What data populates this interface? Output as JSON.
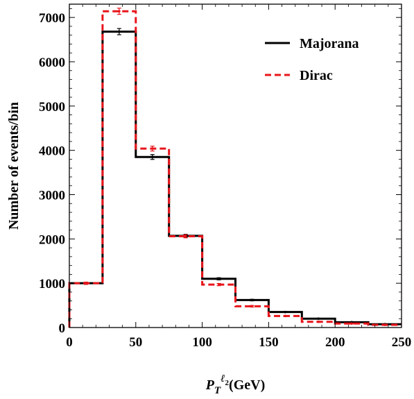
{
  "chart_data": {
    "type": "histogram",
    "xlabel": {
      "main": "P",
      "sub": "T",
      "sup": "ℓ",
      "supsub": "2",
      "unit": "(GeV)"
    },
    "ylabel": "Number of events/bin",
    "xlim": [
      0,
      250
    ],
    "ylim": [
      0,
      7300
    ],
    "xticks": [
      0,
      50,
      100,
      150,
      200,
      250
    ],
    "yticks": [
      0,
      1000,
      2000,
      3000,
      4000,
      5000,
      6000,
      7000
    ],
    "bin_edges": [
      0,
      25,
      50,
      75,
      100,
      125,
      150,
      175,
      200,
      225,
      250
    ],
    "legend_position": "top-right",
    "grid": false,
    "series": [
      {
        "name": "Majorana",
        "color": "#000000",
        "dash": "solid",
        "values": [
          1000,
          6680,
          3850,
          2070,
          1100,
          620,
          350,
          200,
          120,
          75
        ],
        "errors": [
          25,
          70,
          55,
          35,
          25,
          18,
          12,
          10,
          8,
          6
        ]
      },
      {
        "name": "Dirac",
        "color": "#e8151b",
        "dash": "dashed",
        "values": [
          1000,
          7140,
          4040,
          2060,
          970,
          480,
          260,
          130,
          90,
          60
        ],
        "errors": [
          25,
          70,
          55,
          35,
          25,
          18,
          12,
          10,
          8,
          6
        ]
      }
    ]
  }
}
